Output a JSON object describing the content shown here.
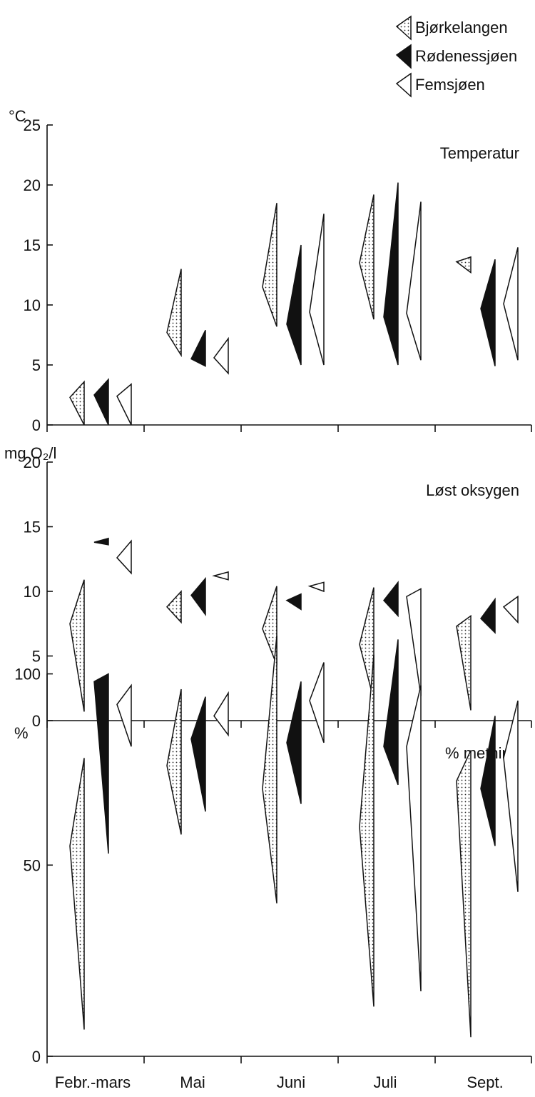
{
  "legend": {
    "placement": "top-right",
    "items": [
      {
        "name": "Bjørkelangen",
        "fill": "dotted"
      },
      {
        "name": "Rødenessjøen",
        "fill": "black"
      },
      {
        "name": "Femsjøen",
        "fill": "white"
      }
    ]
  },
  "x_categories": [
    "Febr.-mars",
    "Mai",
    "Juni",
    "Juli",
    "Sept."
  ],
  "chart_data": [
    {
      "type": "range-triangle",
      "title": "Temperatur",
      "unit": "°C",
      "ylim": [
        0,
        25
      ],
      "yticks": [
        0,
        5,
        10,
        15,
        20,
        25
      ],
      "categories": [
        "Febr.-mars",
        "Mai",
        "Juni",
        "Juli",
        "Sept."
      ],
      "series": [
        {
          "name": "Bjørkelangen",
          "fill": "dotted",
          "values": [
            {
              "min": 0.0,
              "max": 3.6,
              "mean": 2.3
            },
            {
              "min": 5.8,
              "max": 13.0,
              "mean": 7.7
            },
            {
              "min": 8.2,
              "max": 18.5,
              "mean": 11.5
            },
            {
              "min": 8.8,
              "max": 19.2,
              "mean": 13.5
            },
            {
              "min": 12.7,
              "max": 14.0,
              "mean": 13.6
            }
          ]
        },
        {
          "name": "Rødenessjøen",
          "fill": "black",
          "values": [
            {
              "min": 0.0,
              "max": 3.8,
              "mean": 2.5
            },
            {
              "min": 4.9,
              "max": 7.9,
              "mean": 5.5
            },
            {
              "min": 5.0,
              "max": 15.0,
              "mean": 8.4
            },
            {
              "min": 5.0,
              "max": 20.2,
              "mean": 9.0
            },
            {
              "min": 4.9,
              "max": 13.8,
              "mean": 9.7
            }
          ]
        },
        {
          "name": "Femsjøen",
          "fill": "white",
          "values": [
            {
              "min": 0.0,
              "max": 3.4,
              "mean": 2.4
            },
            {
              "min": 4.3,
              "max": 7.2,
              "mean": 5.6
            },
            {
              "min": 5.0,
              "max": 17.6,
              "mean": 9.4
            },
            {
              "min": 5.4,
              "max": 18.6,
              "mean": 9.3
            },
            {
              "min": 5.4,
              "max": 14.8,
              "mean": 10.1
            }
          ]
        }
      ]
    },
    {
      "type": "range-triangle",
      "title": "Løst oksygen",
      "unit": "mg O₂/l",
      "ylim": [
        0,
        20
      ],
      "yticks": [
        0,
        5,
        10,
        15,
        20
      ],
      "categories": [
        "Febr.-mars",
        "Mai",
        "Juni",
        "Juli",
        "Sept."
      ],
      "series": [
        {
          "name": "Bjørkelangen",
          "fill": "dotted",
          "values": [
            {
              "min": 0.7,
              "max": 10.9,
              "mean": 7.5
            },
            {
              "min": 7.6,
              "max": 10.0,
              "mean": 8.8
            },
            {
              "min": 4.3,
              "max": 10.4,
              "mean": 7.1
            },
            {
              "min": 1.6,
              "max": 10.3,
              "mean": 5.9
            },
            {
              "min": 0.8,
              "max": 8.1,
              "mean": 7.3
            }
          ]
        },
        {
          "name": "Rødenessjøen",
          "fill": "black",
          "values": [
            {
              "min": 13.6,
              "max": 14.1,
              "mean": 13.8
            },
            {
              "min": 8.2,
              "max": 11.0,
              "mean": 9.7
            },
            {
              "min": 8.6,
              "max": 9.8,
              "mean": 9.3
            },
            {
              "min": 8.1,
              "max": 10.7,
              "mean": 9.3
            },
            {
              "min": 6.8,
              "max": 9.4,
              "mean": 7.9
            }
          ]
        },
        {
          "name": "Femsjøen",
          "fill": "white",
          "values": [
            {
              "min": 11.4,
              "max": 13.9,
              "mean": 12.6
            },
            {
              "min": 10.9,
              "max": 11.5,
              "mean": 11.2
            },
            {
              "min": 10.0,
              "max": 10.7,
              "mean": 10.4
            },
            {
              "min": 1.9,
              "max": 10.2,
              "mean": 9.6
            },
            {
              "min": 7.6,
              "max": 9.6,
              "mean": 8.8
            }
          ]
        }
      ]
    },
    {
      "type": "range-triangle",
      "title": "% metning",
      "unit": "%",
      "ylim": [
        0,
        110
      ],
      "yticks": [
        0,
        50,
        100
      ],
      "categories": [
        "Febr.-mars",
        "Mai",
        "Juni",
        "Juli",
        "Sept."
      ],
      "series": [
        {
          "name": "Bjørkelangen",
          "fill": "dotted",
          "values": [
            {
              "min": 7,
              "max": 78,
              "mean": 55
            },
            {
              "min": 58,
              "max": 96,
              "mean": 76
            },
            {
              "min": 40,
              "max": 110,
              "mean": 70
            },
            {
              "min": 13,
              "max": 105,
              "mean": 60
            },
            {
              "min": 5,
              "max": 80,
              "mean": 72
            }
          ]
        },
        {
          "name": "Rødenessjøen",
          "fill": "black",
          "values": [
            {
              "min": 53,
              "max": 100,
              "mean": 98
            },
            {
              "min": 64,
              "max": 94,
              "mean": 83
            },
            {
              "min": 66,
              "max": 98,
              "mean": 82
            },
            {
              "min": 71,
              "max": 109,
              "mean": 81
            },
            {
              "min": 55,
              "max": 89,
              "mean": 70
            }
          ]
        },
        {
          "name": "Femsjøen",
          "fill": "white",
          "values": [
            {
              "min": 81,
              "max": 97,
              "mean": 92
            },
            {
              "min": 84,
              "max": 95,
              "mean": 89
            },
            {
              "min": 82,
              "max": 103,
              "mean": 93
            },
            {
              "min": 17,
              "max": 97,
              "mean": 81
            },
            {
              "min": 43,
              "max": 93,
              "mean": 78
            }
          ]
        }
      ]
    }
  ]
}
